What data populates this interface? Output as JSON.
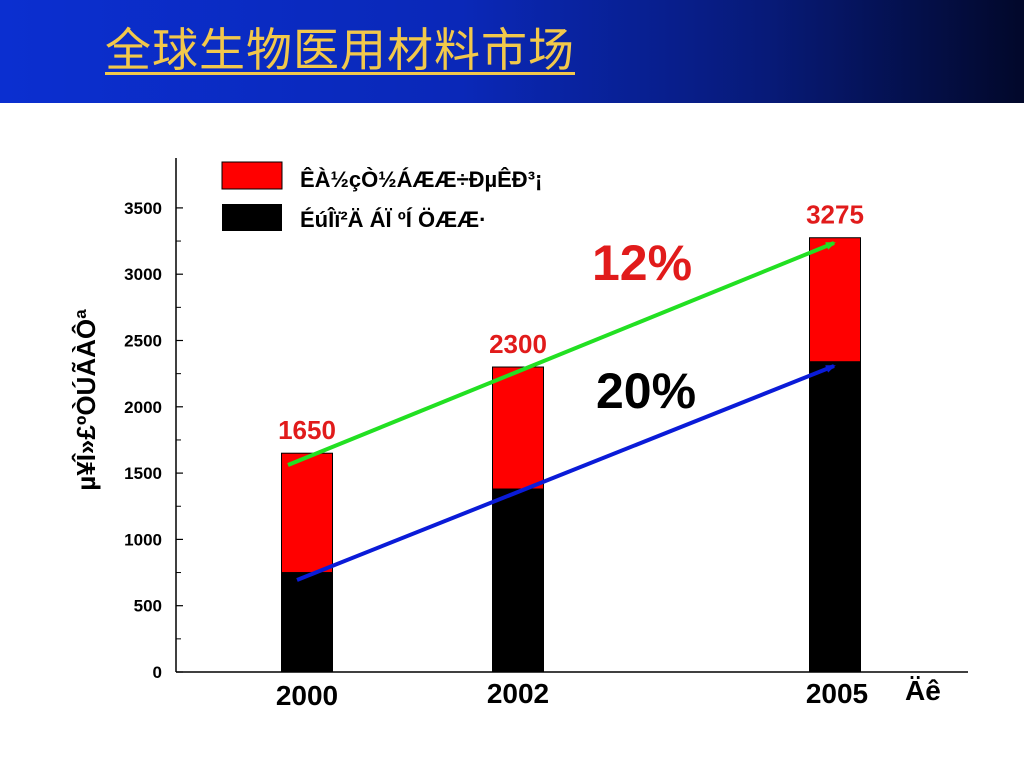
{
  "slide": {
    "title": "全球生物医用材料市场"
  },
  "colors": {
    "banner": "#0a28b8",
    "title": "#f2c84b",
    "series_top": "#ff0000",
    "series_bottom": "#000000",
    "arrow_top": "#22e022",
    "arrow_bottom": "#0a1bd8",
    "data_label": "#e11b1b"
  },
  "chart_data": {
    "type": "bar",
    "stacked": true,
    "categories": [
      "2000",
      "2002",
      "2005"
    ],
    "series": [
      {
        "name": "ÉúÎï²Ä ÁÏ ºÍ ÖÆÆ·",
        "values": [
          750,
          1380,
          2340
        ],
        "color": "#000000"
      },
      {
        "name": "ÊÀ½çÒ½ÁÆÆ÷ÐµÊÐ³¡",
        "values": [
          900,
          920,
          935
        ],
        "color": "#ff0000"
      }
    ],
    "totals": [
      "1650",
      "2300",
      "3275"
    ],
    "ylabel": "µ¥Î»£ºÒÚÃÀÔª",
    "xlabel": "Äê",
    "ylim": [
      0,
      3700
    ],
    "yticks": [
      0,
      500,
      1000,
      1500,
      2000,
      2500,
      3000,
      3500
    ],
    "legend_position": "top",
    "grid": false,
    "annotations": {
      "top_growth": "12%",
      "bottom_growth": "20%"
    }
  }
}
